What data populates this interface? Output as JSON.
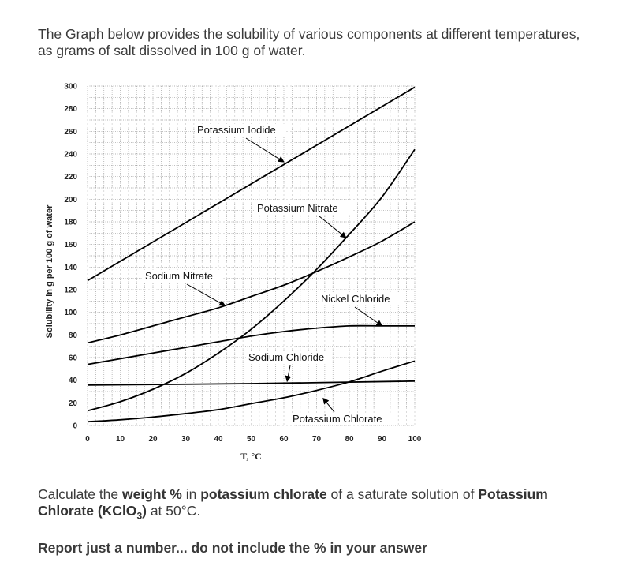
{
  "intro_text": "The Graph below provides the solubility of various components at different temperatures, as grams of salt dissolved in 100 g of water.",
  "question": {
    "p1": "Calculate the ",
    "b1": "weight %",
    "p2": " in ",
    "b2": "potassium chlorate",
    "p3": " of a saturate solution of ",
    "b3": "Potassium Chlorate (KClO",
    "b3_sub": "3",
    "b3_end": ")",
    "p4": " at 50°C."
  },
  "report_text": "Report just a number... do not include the % in your answer",
  "chart_data": {
    "type": "line",
    "xlabel": "T, °C",
    "ylabel": "Solubility in g per 100 g of water",
    "xlim": [
      0,
      100
    ],
    "ylim": [
      0,
      300
    ],
    "x_ticks": [
      0,
      10,
      20,
      30,
      40,
      50,
      60,
      70,
      80,
      90,
      100
    ],
    "y_ticks": [
      0,
      20,
      40,
      60,
      80,
      100,
      120,
      140,
      160,
      180,
      200,
      220,
      240,
      260,
      280,
      300
    ],
    "grid": true,
    "series": [
      {
        "name": "Potassium Iodide",
        "x": [
          0,
          100
        ],
        "y": [
          128,
          299
        ]
      },
      {
        "name": "Potassium Nitrate",
        "x": [
          0,
          10,
          20,
          30,
          40,
          50,
          60,
          70,
          80,
          90,
          100
        ],
        "y": [
          13,
          21,
          32,
          46,
          64,
          85,
          110,
          138,
          169,
          202,
          244
        ]
      },
      {
        "name": "Sodium Nitrate",
        "x": [
          0,
          10,
          20,
          30,
          40,
          50,
          60,
          70,
          80,
          90,
          100
        ],
        "y": [
          73,
          80,
          88,
          96,
          104,
          114,
          124,
          136,
          149,
          163,
          180
        ]
      },
      {
        "name": "Nickel Chloride",
        "x": [
          0,
          10,
          20,
          30,
          40,
          50,
          60,
          70,
          80,
          90,
          100
        ],
        "y": [
          54,
          59,
          64,
          69,
          74,
          79,
          83,
          86,
          88,
          88,
          88
        ]
      },
      {
        "name": "Sodium Chloride",
        "x": [
          0,
          50,
          100
        ],
        "y": [
          35.7,
          37,
          39.2
        ]
      },
      {
        "name": "Potassium Chlorate",
        "x": [
          0,
          10,
          20,
          30,
          40,
          50,
          60,
          70,
          80,
          90,
          100
        ],
        "y": [
          3.3,
          5,
          7.4,
          10.5,
          14,
          19.3,
          24.5,
          31,
          38.5,
          48,
          57
        ]
      }
    ],
    "annotations": [
      {
        "text": "Potassium Iodide",
        "points_to_x": 60,
        "points_to_y": 233
      },
      {
        "text": "Potassium Nitrate",
        "points_to_x": 79,
        "points_to_y": 166
      },
      {
        "text": "Sodium Nitrate",
        "points_to_x": 42,
        "points_to_y": 106
      },
      {
        "text": "Nickel Chloride",
        "points_to_x": 90,
        "points_to_y": 88
      },
      {
        "text": "Sodium Chloride",
        "points_to_x": 61,
        "points_to_y": 39
      },
      {
        "text": "Potassium Chlorate",
        "points_to_x": 72,
        "points_to_y": 24
      }
    ],
    "line_color": "#000000",
    "grid_color": "#9a9a9a"
  }
}
